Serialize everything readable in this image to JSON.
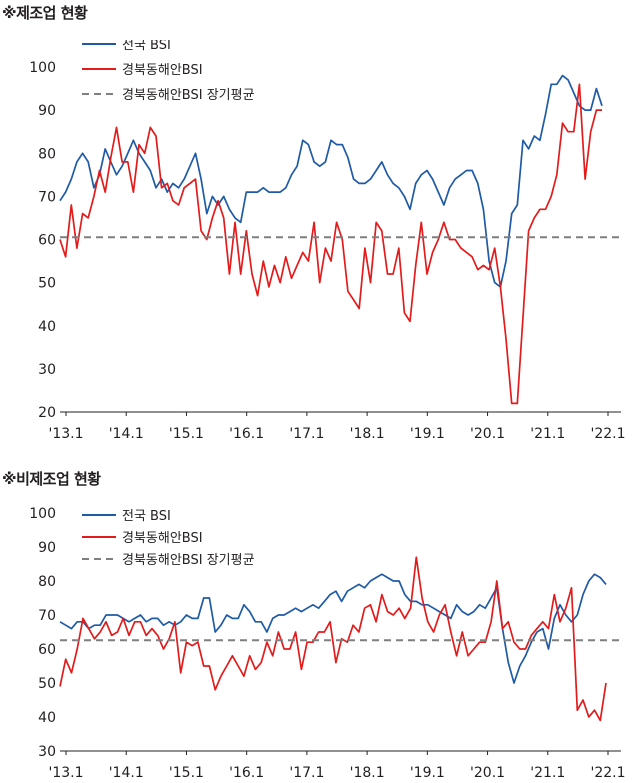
{
  "chart_data": [
    {
      "type": "line",
      "title": "※제조업 현황",
      "ylim": [
        20,
        100
      ],
      "yticks": [
        20,
        30,
        40,
        50,
        60,
        70,
        80,
        90,
        100
      ],
      "xticks": [
        "'13.1",
        "'14.1",
        "'15.1",
        "'16.1",
        "'17.1",
        "'18.1",
        "'19.1",
        "'20.1",
        "'21.1",
        "'22.1"
      ],
      "x_start": "2013-01",
      "x_end": "2022-02",
      "legend": {
        "placement": "top-left"
      },
      "series": [
        {
          "name": "전국 BSI",
          "color": "#1f5aa6",
          "dash": "solid",
          "values": [
            69,
            71,
            74,
            78,
            80,
            78,
            72,
            75,
            81,
            78,
            75,
            77,
            80,
            83,
            80,
            78,
            76,
            72,
            74,
            71,
            73,
            72,
            74,
            77,
            80,
            74,
            66,
            70,
            68,
            70,
            67,
            65,
            64,
            71,
            71,
            71,
            72,
            71,
            71,
            71,
            72,
            75,
            77,
            83,
            82,
            78,
            77,
            78,
            83,
            82,
            82,
            79,
            74,
            73,
            73,
            74,
            76,
            78,
            75,
            73,
            72,
            70,
            67,
            73,
            75,
            76,
            74,
            71,
            68,
            72,
            74,
            75,
            76,
            76,
            73,
            67,
            55,
            50,
            49,
            55,
            66,
            68,
            83,
            81,
            84,
            83,
            89,
            96,
            96,
            98,
            97,
            94,
            91,
            90,
            90,
            95,
            91
          ]
        },
        {
          "name": "경북동해안BSI",
          "color": "#e31b1b",
          "dash": "solid",
          "values": [
            60,
            56,
            68,
            58,
            66,
            65,
            70,
            76,
            71,
            79,
            86,
            78,
            78,
            71,
            82,
            80,
            86,
            84,
            72,
            73,
            69,
            68,
            72,
            73,
            74,
            62,
            60,
            65,
            69,
            65,
            52,
            64,
            52,
            62,
            52,
            47,
            55,
            49,
            54,
            50,
            56,
            51,
            54,
            57,
            55,
            64,
            50,
            58,
            55,
            64,
            60,
            48,
            46,
            44,
            58,
            50,
            64,
            62,
            52,
            52,
            58,
            43,
            41,
            54,
            64,
            52,
            57,
            60,
            64,
            60,
            60,
            58,
            57,
            56,
            53,
            54,
            53,
            58,
            49,
            37,
            22,
            22,
            42,
            62,
            65,
            67,
            67,
            70,
            75,
            87,
            85,
            85,
            96,
            74,
            85,
            90,
            90
          ]
        },
        {
          "name": "경북동해안BSI 장기평균",
          "color": "#7f7f7f",
          "dash": "dashed",
          "values": [
            60.5,
            60.5
          ]
        }
      ]
    },
    {
      "type": "line",
      "title": "※비제조업 현황",
      "ylim": [
        30,
        100
      ],
      "yticks": [
        30,
        40,
        50,
        60,
        70,
        80,
        90,
        100
      ],
      "xticks": [
        "'13.1",
        "'14.1",
        "'15.1",
        "'16.1",
        "'17.1",
        "'18.1",
        "'19.1",
        "'20.1",
        "'21.1",
        "'22.1"
      ],
      "x_start": "2013-01",
      "x_end": "2022-02",
      "legend": {
        "placement": "top-left"
      },
      "series": [
        {
          "name": "전국 BSI",
          "color": "#1f5aa6",
          "dash": "solid",
          "values": [
            68,
            67,
            66,
            68,
            68,
            66,
            67,
            67,
            70,
            70,
            70,
            69,
            68,
            69,
            70,
            68,
            69,
            69,
            67,
            68,
            67,
            68,
            70,
            69,
            69,
            75,
            75,
            65,
            67,
            70,
            69,
            69,
            73,
            71,
            68,
            68,
            65,
            69,
            70,
            70,
            71,
            72,
            71,
            72,
            73,
            72,
            74,
            76,
            77,
            74,
            77,
            78,
            79,
            78,
            80,
            81,
            82,
            81,
            80,
            80,
            76,
            74,
            74,
            73,
            73,
            72,
            71,
            70,
            69,
            73,
            71,
            70,
            71,
            73,
            72,
            75,
            78,
            66,
            56,
            50,
            55,
            58,
            62,
            65,
            66,
            60,
            69,
            73,
            70,
            68,
            70,
            76,
            80,
            82,
            81,
            79
          ]
        },
        {
          "name": "경북동해안BSI",
          "color": "#e31b1b",
          "dash": "solid",
          "values": [
            49,
            57,
            53,
            60,
            69,
            66,
            63,
            65,
            68,
            64,
            65,
            69,
            64,
            68,
            68,
            64,
            66,
            64,
            60,
            63,
            68,
            53,
            62,
            61,
            62,
            55,
            55,
            48,
            52,
            55,
            58,
            55,
            52,
            58,
            54,
            56,
            62,
            58,
            65,
            60,
            60,
            65,
            54,
            62,
            62,
            65,
            65,
            68,
            56,
            63,
            62,
            67,
            65,
            72,
            73,
            68,
            76,
            71,
            70,
            72,
            69,
            72,
            87,
            75,
            68,
            65,
            70,
            73,
            65,
            58,
            65,
            58,
            60,
            62,
            62,
            68,
            80,
            66,
            68,
            62,
            60,
            60,
            64,
            66,
            68,
            66,
            76,
            68,
            72,
            78,
            42,
            45,
            40,
            42,
            39,
            50
          ]
        },
        {
          "name": "경북동해안BSI 장기평균",
          "color": "#7f7f7f",
          "dash": "dashed",
          "values": [
            62.6,
            62.6
          ]
        }
      ]
    }
  ]
}
